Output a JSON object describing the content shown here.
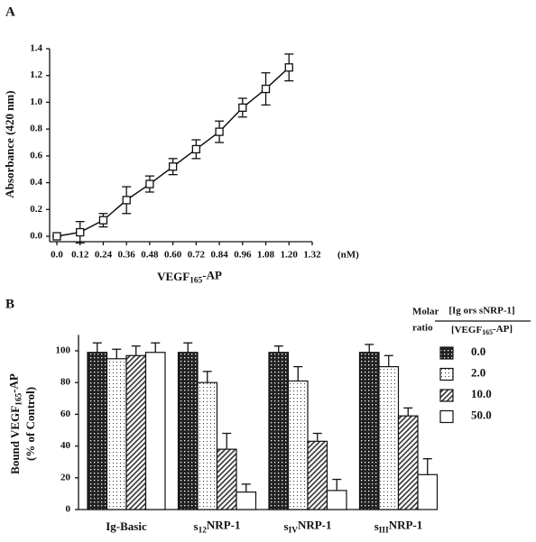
{
  "chart_data": [
    {
      "type": "line",
      "panel_label": "A",
      "y_label": "Absorbance (420 nm)",
      "x_label_parts": [
        "VEGF",
        "165",
        "-AP"
      ],
      "x_unit": "(nM)",
      "x": [
        0,
        0.12,
        0.24,
        0.36,
        0.48,
        0.6,
        0.72,
        0.84,
        0.96,
        1.08,
        1.2
      ],
      "series": [
        {
          "values": [
            0.0,
            0.03,
            0.12,
            0.27,
            0.39,
            0.52,
            0.65,
            0.78,
            0.96,
            1.1,
            1.26
          ],
          "errors": [
            0.0,
            0.08,
            0.05,
            0.1,
            0.06,
            0.06,
            0.07,
            0.08,
            0.07,
            0.12,
            0.1
          ]
        }
      ],
      "xlim": [
        0,
        1.32
      ],
      "ylim": [
        0,
        1.4
      ],
      "xticks": [
        {
          "value": 0,
          "label": "0.0"
        },
        0.12,
        0.24,
        0.36,
        0.48,
        {
          "value": 0.6,
          "label": "0.60"
        },
        0.72,
        0.84,
        0.96,
        1.08,
        {
          "value": 1.2,
          "label": "1.20"
        },
        1.32
      ],
      "yticks": [
        {
          "value": 0,
          "label": "0.0"
        },
        0.2,
        0.4,
        0.6,
        0.8,
        {
          "value": 1,
          "label": "1.0"
        },
        1.2,
        1.4
      ]
    },
    {
      "type": "bar",
      "panel_label": "B",
      "y_label_parts": [
        "Bound VEGF",
        "165",
        "-AP"
      ],
      "y_label_2": "(% of Control)",
      "categories": [
        [
          "Ig-Basic"
        ],
        [
          "s",
          "12",
          "NRP-1"
        ],
        [
          "s",
          "IV",
          "NRP-1"
        ],
        [
          "s",
          "III",
          "NRP-1"
        ]
      ],
      "series": [
        {
          "name": "0.0",
          "values": [
            99,
            99,
            99,
            99
          ],
          "errors": [
            6,
            6,
            4,
            5
          ]
        },
        {
          "name": "2.0",
          "values": [
            95,
            80,
            81,
            90
          ],
          "errors": [
            6,
            7,
            9,
            7
          ]
        },
        {
          "name": "10.0",
          "values": [
            97,
            38,
            43,
            59
          ],
          "errors": [
            6,
            10,
            5,
            5
          ]
        },
        {
          "name": "50.0",
          "values": [
            99,
            11,
            12,
            22
          ],
          "errors": [
            6,
            5,
            7,
            10
          ]
        }
      ],
      "legend_title": [
        "Molar",
        "ratio"
      ],
      "legend_fraction_top": "[Ig ors sNRP-1]",
      "legend_fraction_bottom_parts": [
        "[VEGF",
        "165",
        "-AP]"
      ],
      "ylim": [
        0,
        110
      ],
      "yticks": [
        0,
        20,
        40,
        60,
        80,
        100
      ]
    }
  ]
}
